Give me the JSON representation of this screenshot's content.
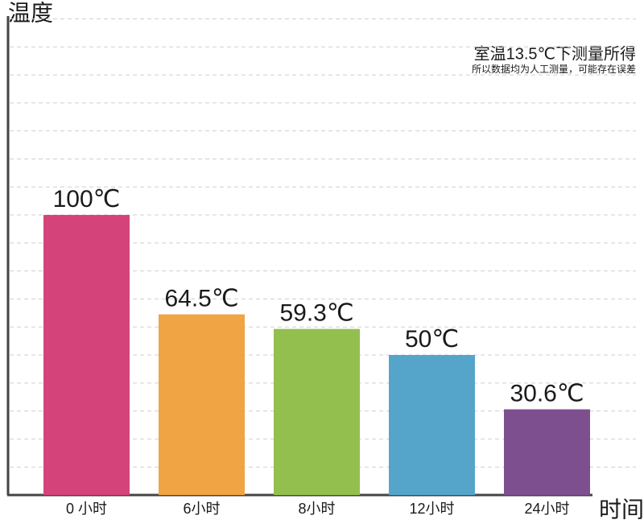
{
  "chart_data": {
    "type": "bar",
    "y_label": "温度",
    "x_label": "时间",
    "annotations": [
      "室温13.5℃下测量所得",
      "所以数据均为人工测量，可能存在误差"
    ],
    "categories": [
      "0 小时",
      "6小时",
      "8小时",
      "12小时",
      "24小时"
    ],
    "values": [
      100,
      64.5,
      59.3,
      50,
      30.6
    ],
    "value_labels": [
      "100℃",
      "64.5℃",
      "59.3℃",
      "50℃",
      "30.6℃"
    ],
    "colors": [
      "#d4447a",
      "#f0a444",
      "#93bf4f",
      "#55a5cb",
      "#7e4f8f"
    ],
    "ylim": [
      0,
      171
    ],
    "yticks": [
      10,
      20,
      30,
      40,
      50,
      60,
      70,
      80,
      90,
      100,
      110,
      120,
      130,
      140,
      150,
      160,
      170
    ],
    "grid": true
  }
}
